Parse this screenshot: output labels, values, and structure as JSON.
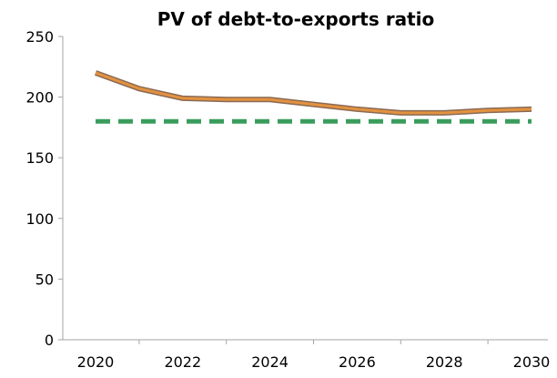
{
  "chart_data": {
    "type": "line",
    "title": "PV of debt-to-exports ratio",
    "xlabel": "",
    "ylabel": "",
    "x": [
      2020,
      2021,
      2022,
      2023,
      2024,
      2025,
      2026,
      2027,
      2028,
      2029,
      2030
    ],
    "xlim": [
      2020,
      2030
    ],
    "ylim": [
      0,
      250
    ],
    "x_ticks": [
      "2020",
      "2022",
      "2024",
      "2026",
      "2028",
      "2030"
    ],
    "y_ticks": [
      "0",
      "50",
      "100",
      "150",
      "200",
      "250"
    ],
    "grid": false,
    "legend": "none",
    "series": [
      {
        "values": [
          220,
          207,
          199,
          198,
          198,
          194,
          190,
          187,
          187,
          189,
          190
        ],
        "color": "#e3923f",
        "style": "solid"
      },
      {
        "values": [
          180,
          180,
          180,
          180,
          180,
          180,
          180,
          180,
          180,
          180,
          180
        ],
        "color": "#3a9d5d",
        "style": "dashed"
      }
    ]
  }
}
